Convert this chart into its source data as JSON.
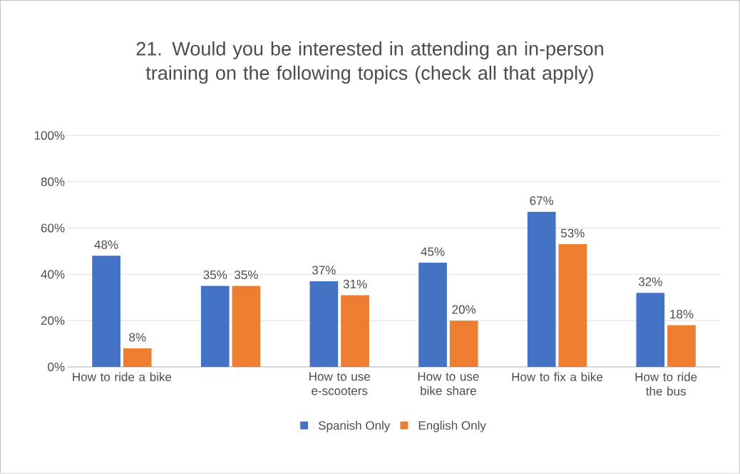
{
  "chart_data": {
    "type": "bar",
    "title": "21. Would you be interested in attending an in-person training on the following topics (check all that apply)",
    "categories": [
      "How to ride a bike",
      null,
      "How to use e-scooters",
      "How to use bike share",
      "How to fix a bike",
      "How to ride the bus"
    ],
    "series": [
      {
        "name": "Spanish Only",
        "color": "#4472c4",
        "values": [
          48,
          35,
          37,
          45,
          67,
          32
        ],
        "value_labels": [
          "48%",
          "35%",
          "37%",
          "45%",
          "67%",
          "32%"
        ]
      },
      {
        "name": "English Only",
        "color": "#ed7d31",
        "values": [
          8,
          35,
          31,
          20,
          53,
          18
        ],
        "value_labels": [
          "8%",
          "35%",
          "31%",
          "20%",
          "53%",
          "18%"
        ]
      }
    ],
    "ylim": [
      0,
      100
    ],
    "yticks": [
      {
        "value": 0,
        "label": "0%"
      },
      {
        "value": 20,
        "label": "20%"
      },
      {
        "value": 40,
        "label": "40%"
      },
      {
        "value": 60,
        "label": "60%"
      },
      {
        "value": 80,
        "label": "80%"
      },
      {
        "value": 100,
        "label": "100%"
      }
    ],
    "grid": "y",
    "legend": "bottom"
  }
}
